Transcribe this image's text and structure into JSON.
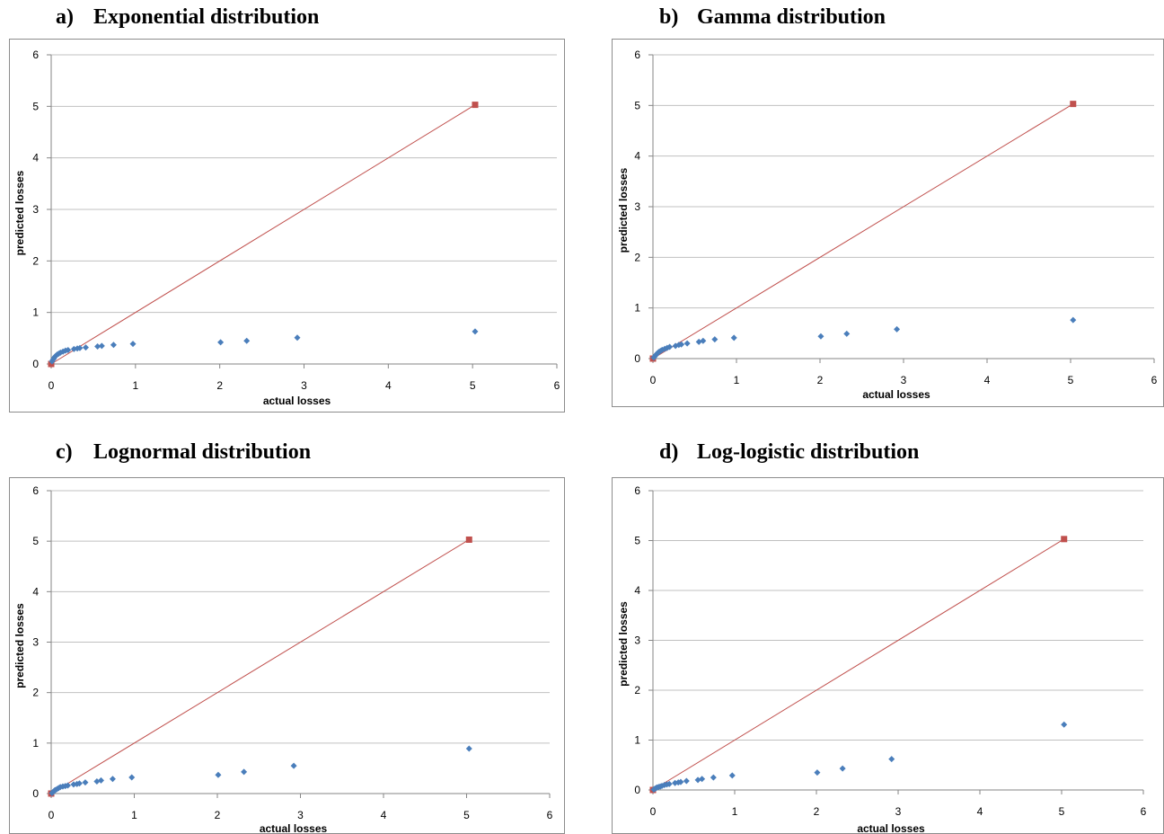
{
  "panels": [
    {
      "letter": "a)",
      "name": "Exponential distribution"
    },
    {
      "letter": "b)",
      "name": "Gamma distribution"
    },
    {
      "letter": "c)",
      "name": "Lognormal distribution"
    },
    {
      "letter": "d)",
      "name": "Log-logistic distribution"
    }
  ],
  "colors": {
    "scatter": "#4a7ebb",
    "line": "#c0504d",
    "grid": "#c0c0c0",
    "frame": "#8c8c8c"
  },
  "chart_data": [
    {
      "type": "scatter",
      "title": "Exponential distribution",
      "xlabel": "actual losses",
      "ylabel": "predicted losses",
      "xlim": [
        0,
        6
      ],
      "ylim": [
        0,
        6
      ],
      "xticks": [
        "0",
        "1",
        "2",
        "3",
        "4",
        "5",
        "6"
      ],
      "yticks": [
        "0",
        "1",
        "2",
        "3",
        "4",
        "5",
        "6"
      ],
      "grid": "horizontal",
      "series": [
        {
          "points": [
            [
              0.01,
              0.05
            ],
            [
              0.02,
              0.08
            ],
            [
              0.03,
              0.1
            ],
            [
              0.04,
              0.13
            ],
            [
              0.05,
              0.15
            ],
            [
              0.07,
              0.18
            ],
            [
              0.09,
              0.2
            ],
            [
              0.11,
              0.22
            ],
            [
              0.14,
              0.24
            ],
            [
              0.17,
              0.26
            ],
            [
              0.2,
              0.27
            ],
            [
              0.27,
              0.29
            ],
            [
              0.31,
              0.3
            ],
            [
              0.34,
              0.31
            ],
            [
              0.41,
              0.32
            ],
            [
              0.55,
              0.34
            ],
            [
              0.6,
              0.35
            ],
            [
              0.74,
              0.37
            ],
            [
              0.97,
              0.39
            ],
            [
              2.01,
              0.42
            ],
            [
              2.32,
              0.45
            ],
            [
              2.92,
              0.51
            ],
            [
              5.03,
              0.63
            ]
          ]
        },
        {
          "points": [
            [
              0,
              0
            ],
            [
              5.03,
              5.03
            ]
          ]
        }
      ]
    },
    {
      "type": "scatter",
      "title": "Gamma distribution",
      "xlabel": "actual losses",
      "ylabel": "predicted losses",
      "xlim": [
        0,
        6
      ],
      "ylim": [
        0,
        6
      ],
      "xticks": [
        "0",
        "1",
        "2",
        "3",
        "4",
        "5",
        "6"
      ],
      "yticks": [
        "0",
        "1",
        "2",
        "3",
        "4",
        "5",
        "6"
      ],
      "grid": "horizontal",
      "series": [
        {
          "points": [
            [
              0.01,
              0.02
            ],
            [
              0.02,
              0.04
            ],
            [
              0.03,
              0.06
            ],
            [
              0.04,
              0.08
            ],
            [
              0.05,
              0.1
            ],
            [
              0.07,
              0.13
            ],
            [
              0.09,
              0.15
            ],
            [
              0.11,
              0.17
            ],
            [
              0.14,
              0.19
            ],
            [
              0.17,
              0.21
            ],
            [
              0.2,
              0.23
            ],
            [
              0.27,
              0.25
            ],
            [
              0.31,
              0.27
            ],
            [
              0.34,
              0.28
            ],
            [
              0.41,
              0.3
            ],
            [
              0.55,
              0.33
            ],
            [
              0.6,
              0.35
            ],
            [
              0.74,
              0.38
            ],
            [
              0.97,
              0.41
            ],
            [
              2.01,
              0.44
            ],
            [
              2.32,
              0.49
            ],
            [
              2.92,
              0.58
            ],
            [
              5.03,
              0.76
            ]
          ]
        },
        {
          "points": [
            [
              0,
              0
            ],
            [
              5.03,
              5.03
            ]
          ]
        }
      ]
    },
    {
      "type": "scatter",
      "title": "Lognormal distribution",
      "xlabel": "actual losses",
      "ylabel": "predicted losses",
      "xlim": [
        0,
        6
      ],
      "ylim": [
        0,
        6
      ],
      "xticks": [
        "0",
        "1",
        "2",
        "3",
        "4",
        "5",
        "6"
      ],
      "yticks": [
        "0",
        "1",
        "2",
        "3",
        "4",
        "5",
        "6"
      ],
      "grid": "horizontal",
      "series": [
        {
          "points": [
            [
              0.01,
              0.01
            ],
            [
              0.02,
              0.03
            ],
            [
              0.03,
              0.04
            ],
            [
              0.04,
              0.06
            ],
            [
              0.05,
              0.07
            ],
            [
              0.07,
              0.09
            ],
            [
              0.09,
              0.11
            ],
            [
              0.11,
              0.13
            ],
            [
              0.14,
              0.14
            ],
            [
              0.17,
              0.15
            ],
            [
              0.2,
              0.16
            ],
            [
              0.27,
              0.18
            ],
            [
              0.31,
              0.19
            ],
            [
              0.34,
              0.2
            ],
            [
              0.41,
              0.22
            ],
            [
              0.55,
              0.24
            ],
            [
              0.6,
              0.26
            ],
            [
              0.74,
              0.29
            ],
            [
              0.97,
              0.32
            ],
            [
              2.01,
              0.37
            ],
            [
              2.32,
              0.43
            ],
            [
              2.92,
              0.55
            ],
            [
              5.03,
              0.89
            ]
          ]
        },
        {
          "points": [
            [
              0,
              0
            ],
            [
              5.03,
              5.03
            ]
          ]
        }
      ]
    },
    {
      "type": "scatter",
      "title": "Log-logistic distribution",
      "xlabel": "actual losses",
      "ylabel": "predicted losses",
      "xlim": [
        0,
        6
      ],
      "ylim": [
        0,
        6
      ],
      "xticks": [
        "0",
        "1",
        "2",
        "3",
        "4",
        "5",
        "6"
      ],
      "yticks": [
        "0",
        "1",
        "2",
        "3",
        "4",
        "5",
        "6"
      ],
      "grid": "horizontal",
      "series": [
        {
          "points": [
            [
              0.01,
              0.01
            ],
            [
              0.02,
              0.02
            ],
            [
              0.03,
              0.03
            ],
            [
              0.04,
              0.04
            ],
            [
              0.05,
              0.05
            ],
            [
              0.07,
              0.06
            ],
            [
              0.09,
              0.07
            ],
            [
              0.11,
              0.08
            ],
            [
              0.14,
              0.1
            ],
            [
              0.17,
              0.11
            ],
            [
              0.2,
              0.12
            ],
            [
              0.27,
              0.14
            ],
            [
              0.31,
              0.15
            ],
            [
              0.34,
              0.16
            ],
            [
              0.41,
              0.18
            ],
            [
              0.55,
              0.2
            ],
            [
              0.6,
              0.22
            ],
            [
              0.74,
              0.25
            ],
            [
              0.97,
              0.29
            ],
            [
              2.01,
              0.35
            ],
            [
              2.32,
              0.43
            ],
            [
              2.92,
              0.62
            ],
            [
              5.03,
              1.31
            ]
          ]
        },
        {
          "points": [
            [
              0,
              0
            ],
            [
              5.03,
              5.03
            ]
          ]
        }
      ]
    }
  ]
}
